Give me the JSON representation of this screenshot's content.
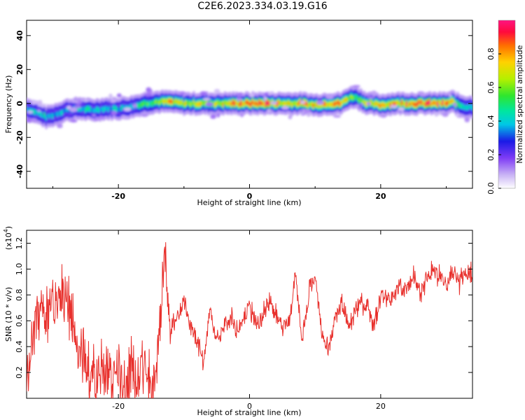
{
  "title": "C2E6.2023.334.03.19.G16",
  "colors": {
    "snr_line": "#e8302c",
    "colormap": [
      "#ffffff",
      "#c9b3f5",
      "#7f3cf5",
      "#1a1ae6",
      "#00c8e6",
      "#00e6a0",
      "#2ee62e",
      "#b4f000",
      "#ffd200",
      "#ff6e00",
      "#ff0a3c",
      "#ff1480"
    ]
  },
  "chart_data": [
    {
      "type": "heatmap",
      "xlabel": "Height of straight line (km)",
      "ylabel": "Frequency (Hz)",
      "xlim": [
        -34,
        34
      ],
      "ylim": [
        -50,
        49
      ],
      "xticks": [
        "-20",
        "0",
        "20"
      ],
      "xtick_values": [
        -20,
        0,
        20
      ],
      "yticks": [
        "40",
        "20",
        "0",
        "-20",
        "-40"
      ],
      "ytick_values": [
        40,
        20,
        0,
        -20,
        -40
      ],
      "colorbar": {
        "label": "Normalized spectral amplitude",
        "range": [
          0,
          1
        ],
        "ticks": [
          "0.0",
          "0.2",
          "0.4",
          "0.6",
          "0.8"
        ],
        "tick_values": [
          0.0,
          0.2,
          0.4,
          0.6,
          0.8
        ]
      },
      "ridge": {
        "x": [
          -34,
          -32,
          -31,
          -30,
          -28,
          -26,
          -24,
          -22,
          -20,
          -18,
          -16,
          -14,
          -12,
          -10,
          -8,
          -6,
          -4,
          -2,
          0,
          2,
          4,
          6,
          8,
          10,
          12,
          14,
          15,
          16,
          18,
          20,
          22,
          24,
          26,
          28,
          30,
          31,
          32,
          33
        ],
        "y": [
          -3,
          -6,
          -8,
          -7,
          -4,
          -3,
          -4,
          -3,
          -3,
          -2,
          0,
          1,
          1,
          0,
          0,
          0,
          0,
          0,
          0,
          0,
          0,
          0,
          0,
          -1,
          0,
          0,
          3,
          4,
          0,
          -1,
          0,
          0,
          0,
          0,
          0,
          1,
          -1,
          -2
        ],
        "amplitude": [
          0.4,
          0.5,
          0.45,
          0.4,
          0.4,
          0.45,
          0.45,
          0.4,
          0.45,
          0.5,
          0.55,
          0.6,
          0.8,
          0.7,
          0.75,
          0.7,
          0.8,
          0.85,
          0.9,
          0.95,
          0.85,
          0.8,
          0.85,
          0.8,
          0.85,
          0.9,
          0.7,
          0.6,
          0.75,
          0.8,
          0.85,
          0.9,
          0.95,
          0.95,
          0.9,
          0.75,
          0.6,
          0.5
        ]
      }
    },
    {
      "type": "line",
      "xlabel": "Height of straight line (km)",
      "ylabel": "SNR (10 * v/v)",
      "y_multiplier_label": "(x10",
      "y_multiplier_exp": "4",
      "xlim": [
        -34,
        34
      ],
      "ylim": [
        0.0,
        1.3
      ],
      "xticks": [
        "-20",
        "0",
        "20"
      ],
      "xtick_values": [
        -20,
        0,
        20
      ],
      "yticks": [
        "0.2",
        "0.4",
        "0.6",
        "0.8",
        "1.0",
        "1.2"
      ],
      "ytick_values": [
        0.2,
        0.4,
        0.6,
        0.8,
        1.0,
        1.2
      ],
      "series": [
        {
          "x": [
            -34,
            -33,
            -32,
            -31,
            -30,
            -29,
            -28,
            -27,
            -26,
            -25,
            -24,
            -23,
            -22,
            -21,
            -20,
            -19,
            -18,
            -17,
            -16,
            -15,
            -14.5,
            -14,
            -13.5,
            -13,
            -12.5,
            -12,
            -11,
            -10,
            -9,
            -8,
            -7,
            -6,
            -5,
            -4,
            -3,
            -2,
            -1,
            0,
            1,
            2,
            3,
            4,
            5,
            6,
            7,
            8,
            9,
            10,
            11,
            12,
            13,
            14,
            15,
            16,
            17,
            18,
            19,
            20,
            21,
            22,
            23,
            24,
            25,
            26,
            27,
            28,
            29,
            30,
            31,
            32,
            33,
            34
          ],
          "y": [
            0.25,
            0.5,
            0.65,
            0.6,
            0.75,
            0.7,
            0.85,
            0.55,
            0.35,
            0.3,
            0.15,
            0.2,
            0.25,
            0.1,
            0.3,
            0.12,
            0.25,
            0.15,
            0.3,
            0.1,
            0.2,
            0.4,
            0.6,
            1.25,
            0.8,
            0.5,
            0.65,
            0.75,
            0.55,
            0.45,
            0.3,
            0.7,
            0.45,
            0.55,
            0.65,
            0.55,
            0.6,
            0.7,
            0.55,
            0.65,
            0.75,
            0.65,
            0.55,
            0.6,
            0.95,
            0.45,
            0.8,
            0.95,
            0.5,
            0.35,
            0.6,
            0.75,
            0.55,
            0.65,
            0.75,
            0.7,
            0.55,
            0.8,
            0.75,
            0.8,
            0.9,
            0.85,
            0.95,
            0.8,
            0.9,
            1.0,
            0.95,
            0.85,
            1.0,
            0.9,
            1.0,
            0.95
          ]
        }
      ]
    }
  ]
}
